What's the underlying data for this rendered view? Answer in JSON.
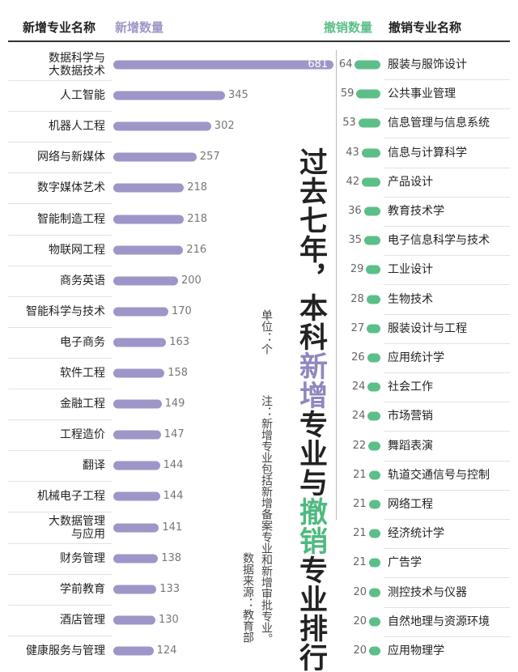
{
  "title_parts": [
    {
      "text": "过去七年，本科",
      "color": "#222222"
    },
    {
      "text": "新增",
      "color": "#8f87c0"
    },
    {
      "text": "专业与",
      "color": "#222222"
    },
    {
      "text": "撤销",
      "color": "#4fb97f"
    },
    {
      "text": "专业排行",
      "color": "#222222"
    }
  ],
  "unit": "单位：个",
  "note": "注：新增专业包括新增备案专业和新增审批专业。",
  "source": "数据来源：教育部",
  "chart_data": [
    {
      "type": "bar",
      "x_label": "新增专业名称",
      "categories": [
        "数据科学与\n大数据技术",
        "人工智能",
        "机器人工程",
        "网络与新媒体",
        "数字媒体艺术",
        "智能制造工程",
        "物联网工程",
        "商务英语",
        "智能科学与技术",
        "电子商务",
        "软件工程",
        "金融工程",
        "工程造价",
        "翻译",
        "机械电子工程",
        "大数据管理\n与应用",
        "财务管理",
        "学前教育",
        "酒店管理",
        "健康服务与管理"
      ],
      "series": [
        {
          "name": "新增数量",
          "color": "#9d96c8",
          "values": [
            681,
            345,
            302,
            257,
            218,
            218,
            216,
            200,
            170,
            163,
            158,
            149,
            147,
            144,
            144,
            141,
            138,
            133,
            130,
            124
          ]
        }
      ]
    },
    {
      "type": "bar",
      "x_label": "撤销专业名称",
      "categories": [
        "服装与服饰设计",
        "公共事业管理",
        "信息管理与信息系统",
        "信息与计算科学",
        "产品设计",
        "教育技术学",
        "电子信息科学与技术",
        "工业设计",
        "生物技术",
        "服装设计与工程",
        "应用统计学",
        "社会工作",
        "市场营销",
        "舞蹈表演",
        "轨道交通信号与控制",
        "网络工程",
        "经济统计学",
        "广告学",
        "测控技术与仪器",
        "自然地理与资源环境",
        "应用物理学"
      ],
      "series": [
        {
          "name": "撤销数量",
          "color": "#5cbf8a",
          "values": [
            64,
            59,
            53,
            43,
            42,
            36,
            35,
            29,
            28,
            27,
            26,
            24,
            24,
            22,
            21,
            21,
            21,
            21,
            20,
            20,
            20
          ]
        }
      ]
    }
  ]
}
